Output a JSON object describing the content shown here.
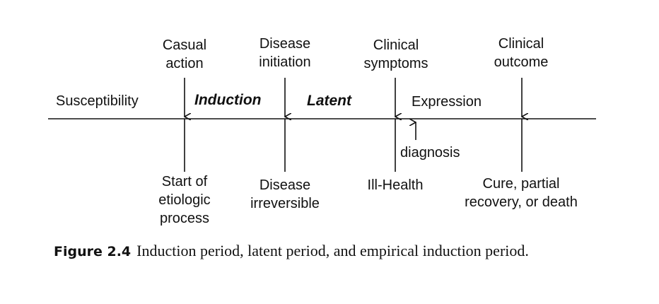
{
  "labels_above": {
    "casual_action": [
      "Casual",
      "action"
    ],
    "disease_initiation": [
      "Disease",
      "initiation"
    ],
    "clinical_symptoms": [
      "Clinical",
      "symptoms"
    ],
    "clinical_outcome": [
      "Clinical",
      "outcome"
    ]
  },
  "phases": {
    "susceptibility": "Susceptibility",
    "induction": "Induction",
    "latent": "Latent",
    "expression": "Expression"
  },
  "labels_below": {
    "start_etiologic": [
      "Start of",
      "etiologic",
      "process"
    ],
    "disease_irreversible": [
      "Disease",
      "irreversible"
    ],
    "ill_health": "Ill-Health",
    "outcome_result": [
      "Cure, partial",
      "recovery, or death"
    ]
  },
  "diagnosis": "diagnosis",
  "caption": {
    "label": "Figure 2.4",
    "text": "Induction period, latent period, and empirical induction period."
  }
}
